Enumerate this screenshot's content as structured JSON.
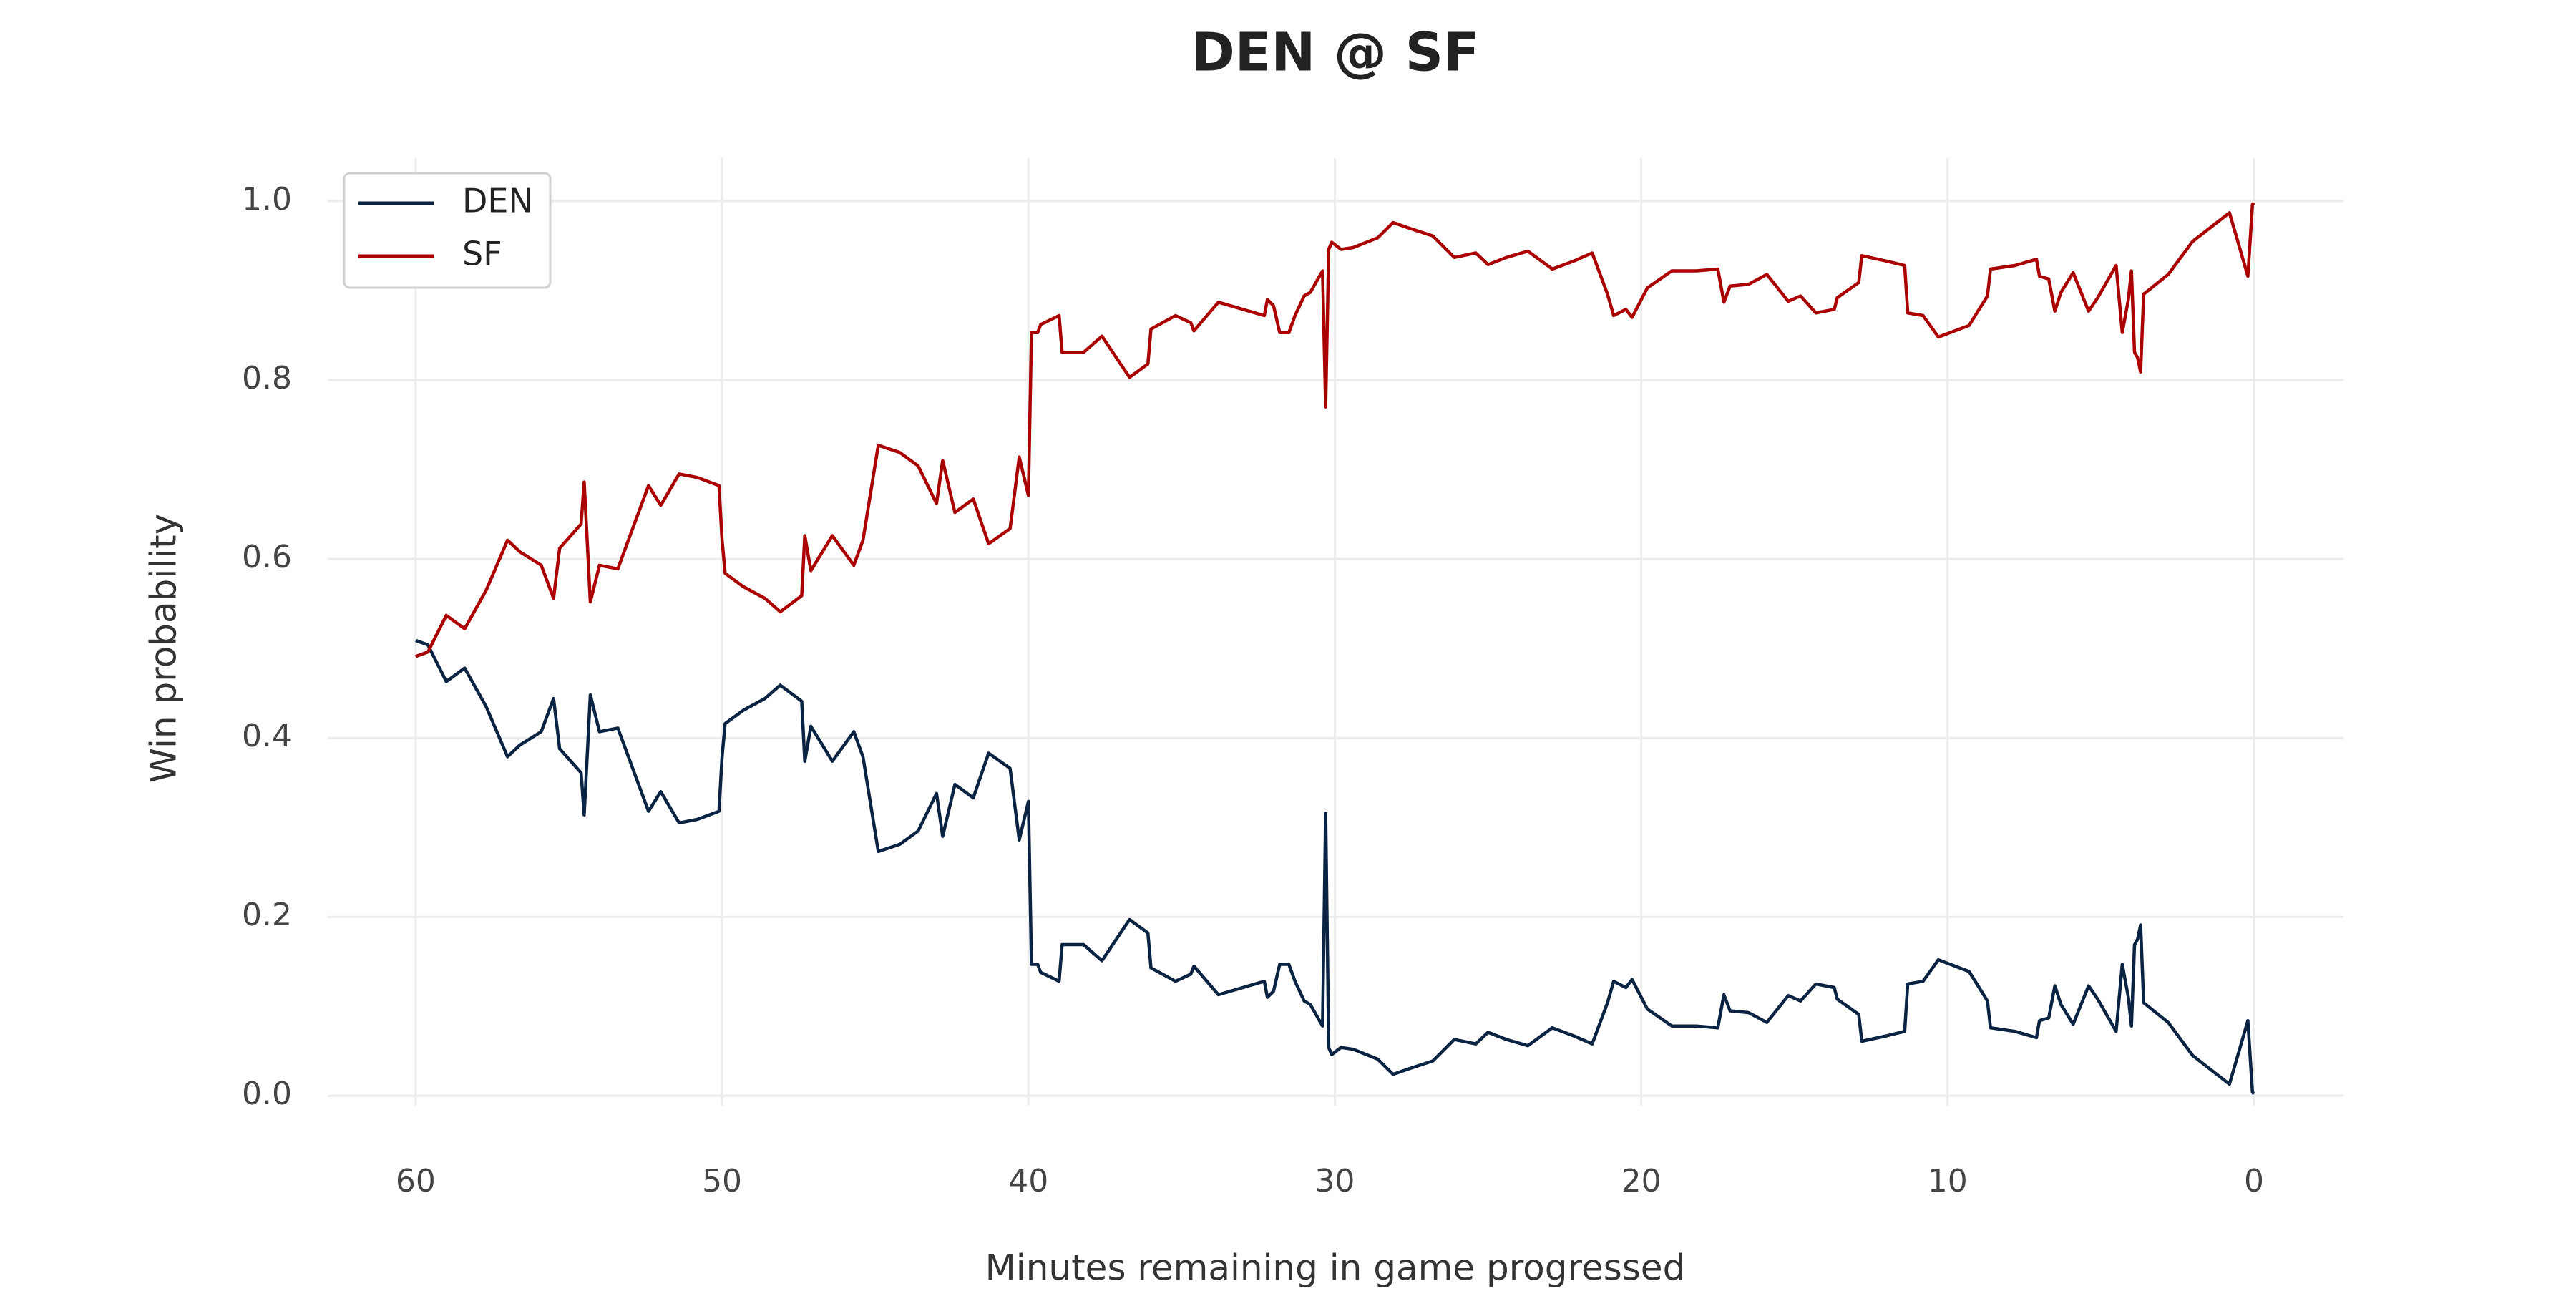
{
  "chart_data": {
    "type": "line",
    "title": "DEN @ SF",
    "xlabel": "Minutes remaining in game progressed",
    "ylabel": "Win probability",
    "xlim": [
      62.87,
      -2.92
    ],
    "ylim": [
      -0.011,
      1.048
    ],
    "xticks": [
      60,
      50,
      40,
      30,
      20,
      10,
      0
    ],
    "yticks": [
      {
        "value": 0,
        "label": "0.0"
      },
      0.2,
      0.4,
      0.6,
      0.8,
      {
        "value": 1,
        "label": "1.0"
      }
    ],
    "grid": true,
    "legend": "upper left",
    "x": [
      60,
      59.6,
      59.0,
      58.4,
      57.7,
      57.0,
      56.6,
      55.9,
      55.5,
      55.3,
      54.6,
      54.5,
      54.3,
      54.0,
      53.4,
      52.8,
      52.4,
      52.0,
      51.4,
      50.8,
      50.1,
      50.0,
      49.9,
      49.3,
      48.6,
      48.1,
      47.4,
      47.3,
      47.1,
      46.4,
      45.7,
      45.4,
      44.9,
      44.2,
      43.6,
      43.0,
      42.8,
      42.4,
      41.8,
      41.3,
      40.6,
      40.3,
      40.0,
      39.9,
      39.7,
      39.6,
      39.0,
      38.9,
      38.2,
      37.6,
      36.7,
      36.1,
      36.0,
      35.2,
      34.7,
      34.6,
      33.8,
      32.3,
      32.2,
      32.0,
      31.8,
      31.5,
      31.3,
      31.0,
      30.8,
      30.5,
      30.4,
      30.3,
      30.2,
      30.1,
      29.8,
      29.4,
      28.6,
      28.1,
      27.6,
      26.8,
      26.1,
      25.4,
      25.0,
      24.4,
      23.7,
      22.9,
      22.2,
      21.6,
      21.1,
      20.9,
      20.5,
      20.3,
      19.8,
      19.0,
      18.2,
      17.5,
      17.3,
      17.1,
      16.5,
      15.9,
      15.2,
      14.8,
      14.3,
      13.7,
      13.6,
      12.9,
      12.8,
      12.0,
      11.4,
      11.3,
      10.8,
      10.3,
      9.3,
      8.7,
      8.6,
      7.8,
      7.1,
      7.0,
      6.7,
      6.5,
      6.3,
      5.9,
      5.4,
      5.1,
      4.5,
      4.3,
      4.1,
      4.0,
      3.9,
      3.8,
      3.7,
      3.6,
      2.8,
      2.0,
      0.8,
      0.2,
      0.05,
      0
    ],
    "series": [
      {
        "name": "DEN",
        "color": "#0b2343",
        "values": [
          0.509,
          0.504,
          0.463,
          0.478,
          0.435,
          0.379,
          0.392,
          0.407,
          0.444,
          0.388,
          0.361,
          0.314,
          0.448,
          0.407,
          0.411,
          0.355,
          0.318,
          0.34,
          0.305,
          0.309,
          0.318,
          0.379,
          0.416,
          0.431,
          0.444,
          0.459,
          0.441,
          0.374,
          0.413,
          0.374,
          0.407,
          0.379,
          0.273,
          0.281,
          0.296,
          0.338,
          0.29,
          0.348,
          0.333,
          0.383,
          0.366,
          0.286,
          0.329,
          0.147,
          0.147,
          0.138,
          0.128,
          0.169,
          0.169,
          0.151,
          0.197,
          0.182,
          0.143,
          0.128,
          0.136,
          0.145,
          0.113,
          0.128,
          0.11,
          0.117,
          0.147,
          0.147,
          0.128,
          0.106,
          0.102,
          0.084,
          0.078,
          0.316,
          0.054,
          0.046,
          0.054,
          0.052,
          0.041,
          0.024,
          0.03,
          0.039,
          0.063,
          0.058,
          0.071,
          0.063,
          0.056,
          0.076,
          0.067,
          0.058,
          0.104,
          0.128,
          0.121,
          0.13,
          0.097,
          0.078,
          0.078,
          0.076,
          0.113,
          0.095,
          0.093,
          0.082,
          0.112,
          0.106,
          0.125,
          0.121,
          0.108,
          0.091,
          0.061,
          0.067,
          0.072,
          0.125,
          0.128,
          0.152,
          0.139,
          0.106,
          0.076,
          0.072,
          0.065,
          0.084,
          0.087,
          0.123,
          0.102,
          0.08,
          0.123,
          0.108,
          0.072,
          0.147,
          0.11,
          0.078,
          0.169,
          0.175,
          0.191,
          0.104,
          0.082,
          0.045,
          0.013,
          0.084,
          0.004,
          0.002
        ]
      },
      {
        "name": "SF",
        "color": "#aa0000",
        "values": [
          0.491,
          0.496,
          0.537,
          0.522,
          0.565,
          0.621,
          0.608,
          0.593,
          0.556,
          0.612,
          0.639,
          0.686,
          0.552,
          0.593,
          0.589,
          0.645,
          0.682,
          0.66,
          0.695,
          0.691,
          0.682,
          0.621,
          0.584,
          0.569,
          0.556,
          0.541,
          0.559,
          0.626,
          0.587,
          0.626,
          0.593,
          0.621,
          0.727,
          0.719,
          0.704,
          0.662,
          0.71,
          0.652,
          0.667,
          0.617,
          0.634,
          0.714,
          0.671,
          0.853,
          0.853,
          0.862,
          0.872,
          0.831,
          0.831,
          0.849,
          0.803,
          0.818,
          0.857,
          0.872,
          0.864,
          0.855,
          0.887,
          0.872,
          0.89,
          0.883,
          0.853,
          0.853,
          0.872,
          0.894,
          0.898,
          0.916,
          0.922,
          0.77,
          0.946,
          0.954,
          0.946,
          0.948,
          0.959,
          0.976,
          0.97,
          0.961,
          0.937,
          0.942,
          0.929,
          0.937,
          0.944,
          0.924,
          0.933,
          0.942,
          0.896,
          0.872,
          0.879,
          0.87,
          0.903,
          0.922,
          0.922,
          0.924,
          0.887,
          0.905,
          0.907,
          0.918,
          0.888,
          0.894,
          0.875,
          0.879,
          0.892,
          0.909,
          0.939,
          0.933,
          0.928,
          0.875,
          0.872,
          0.848,
          0.861,
          0.894,
          0.924,
          0.928,
          0.935,
          0.916,
          0.913,
          0.877,
          0.898,
          0.92,
          0.877,
          0.892,
          0.928,
          0.853,
          0.89,
          0.922,
          0.831,
          0.825,
          0.809,
          0.896,
          0.918,
          0.955,
          0.987,
          0.916,
          0.996,
          0.998
        ]
      }
    ]
  }
}
